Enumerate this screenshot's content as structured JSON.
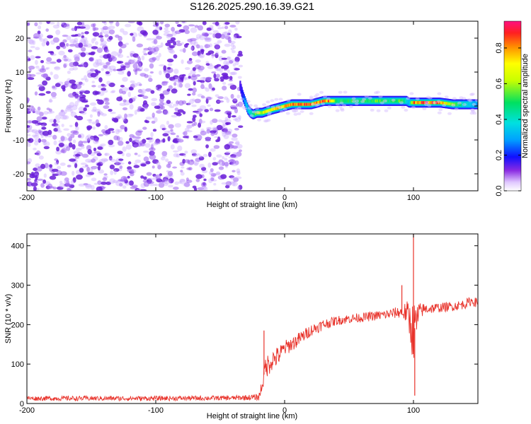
{
  "title": "S126.2025.290.16.39.G21",
  "chart_data": [
    {
      "type": "heatmap",
      "name": "spectrogram",
      "xlabel": "Height of straight line (km)",
      "ylabel": "Frequency (Hz)",
      "xlim": [
        -200,
        150
      ],
      "ylim": [
        -25,
        25
      ],
      "xticks": [
        -200,
        -100,
        0,
        100
      ],
      "xtick_labels": [
        "-200",
        "-100",
        "0",
        "100"
      ],
      "yticks": [
        -20,
        -10,
        0,
        10,
        20
      ],
      "ytick_labels": [
        "-20",
        "-10",
        "0",
        "10",
        "20"
      ],
      "noise_region_x": [
        -200,
        -34
      ],
      "ridge": {
        "x": [
          -35,
          -33,
          -31,
          -29,
          -27,
          -25,
          -22,
          -18,
          -14,
          -10,
          -5,
          0,
          5,
          10,
          15,
          20,
          25,
          30,
          35,
          40,
          50,
          60,
          70,
          80,
          90,
          94,
          96,
          100,
          110,
          120,
          130,
          140,
          150
        ],
        "freq": [
          6,
          3,
          1,
          -1,
          -2,
          -2.5,
          -2,
          -2,
          -1.5,
          -1,
          -0.5,
          0,
          0.5,
          0.5,
          0.5,
          0.5,
          1,
          1.5,
          1.5,
          1.5,
          1.5,
          1.5,
          1.5,
          1.5,
          1.5,
          1.5,
          1,
          1,
          1,
          1,
          0.5,
          0.5,
          0.5
        ],
        "amplitude": [
          0.15,
          0.2,
          0.3,
          0.35,
          0.4,
          0.5,
          0.6,
          0.7,
          0.7,
          0.75,
          0.75,
          0.8,
          0.8,
          0.85,
          0.9,
          0.8,
          0.85,
          0.85,
          0.8,
          0.5,
          0.5,
          0.5,
          0.55,
          0.5,
          0.55,
          0.4,
          0.3,
          0.85,
          0.9,
          0.85,
          0.6,
          0.4,
          0.3
        ]
      },
      "colorbar": {
        "label": "Normalized spectral amplitude",
        "range": [
          0,
          0.95
        ],
        "ticks": [
          0,
          0.2,
          0.4,
          0.6,
          0.8
        ],
        "tick_labels": [
          "0.0",
          "0.2",
          "0.4",
          "0.6",
          "0.8"
        ]
      }
    },
    {
      "type": "line",
      "name": "snr",
      "xlabel": "Height of straight line (km)",
      "ylabel": "SNR (10 * v/v)",
      "xlim": [
        -200,
        150
      ],
      "ylim": [
        0,
        430
      ],
      "xticks": [
        -200,
        -100,
        0,
        100
      ],
      "xtick_labels": [
        "-200",
        "-100",
        "0",
        "100"
      ],
      "yticks": [
        0,
        100,
        200,
        300,
        400
      ],
      "ytick_labels": [
        "0",
        "100",
        "200",
        "300",
        "400"
      ],
      "color": "#e8322a",
      "series": {
        "x": [
          -200,
          -100,
          -40,
          -20,
          -18,
          -15,
          -10,
          -5,
          0,
          10,
          20,
          30,
          40,
          50,
          60,
          70,
          80,
          90,
          95,
          100,
          105,
          110,
          120,
          130,
          140,
          145,
          150
        ],
        "mean": [
          13,
          13,
          14,
          16,
          40,
          90,
          110,
          120,
          140,
          160,
          185,
          200,
          210,
          215,
          218,
          222,
          226,
          232,
          230,
          180,
          235,
          240,
          243,
          246,
          252,
          260,
          255
        ],
        "noise": [
          6,
          6,
          6,
          8,
          20,
          30,
          28,
          25,
          20,
          18,
          15,
          14,
          12,
          12,
          12,
          12,
          13,
          15,
          30,
          80,
          20,
          14,
          12,
          12,
          12,
          12,
          12
        ]
      },
      "spikes": [
        {
          "x": -16,
          "y": 185
        },
        {
          "x": 100,
          "y": 430
        },
        {
          "x": 101,
          "y": 20
        },
        {
          "x": 91,
          "y": 300
        }
      ]
    }
  ]
}
